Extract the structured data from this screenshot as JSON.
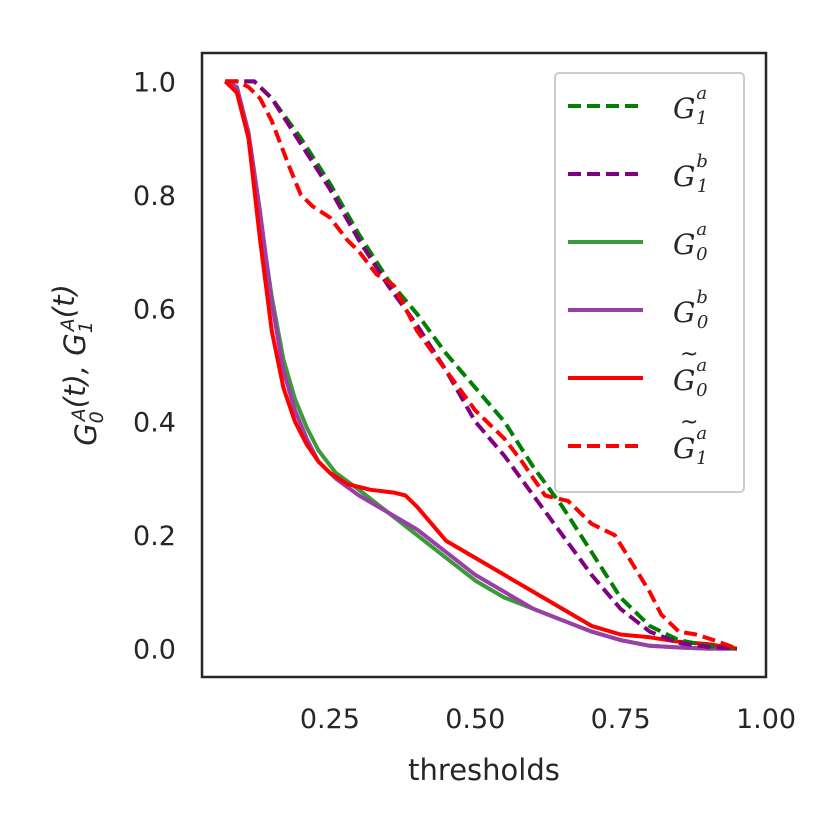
{
  "chart_data": {
    "type": "line",
    "title": "",
    "xlabel": "thresholds",
    "ylabel": "G_0^A(t), G_1^A(t)",
    "xlim": [
      0.03,
      1.0
    ],
    "ylim": [
      -0.05,
      1.05
    ],
    "xticks": [
      0.25,
      0.5,
      0.75,
      1.0
    ],
    "xtick_labels": [
      "0.25",
      "0.50",
      "0.75",
      "1.00"
    ],
    "yticks": [
      0.0,
      0.2,
      0.4,
      0.6,
      0.8,
      1.0
    ],
    "ytick_labels": [
      "0.0",
      "0.2",
      "0.4",
      "0.6",
      "0.8",
      "1.0"
    ],
    "legend_position": "top-right",
    "series": [
      {
        "name": "G_1^a",
        "legend": {
          "base": "G",
          "tilde": false,
          "sub": "1",
          "sup": "a"
        },
        "color": "#008000",
        "dash": "dashed",
        "x": [
          0.07,
          0.1,
          0.12,
          0.15,
          0.2,
          0.25,
          0.3,
          0.35,
          0.4,
          0.45,
          0.5,
          0.55,
          0.6,
          0.65,
          0.7,
          0.75,
          0.8,
          0.85,
          0.9,
          0.95
        ],
        "y": [
          1.0,
          1.0,
          1.0,
          0.97,
          0.9,
          0.82,
          0.73,
          0.65,
          0.59,
          0.52,
          0.46,
          0.4,
          0.32,
          0.25,
          0.17,
          0.09,
          0.04,
          0.015,
          0.005,
          0.0
        ]
      },
      {
        "name": "G_1^b",
        "legend": {
          "base": "G",
          "tilde": false,
          "sub": "1",
          "sup": "b"
        },
        "color": "#800080",
        "dash": "dashed",
        "x": [
          0.07,
          0.1,
          0.12,
          0.15,
          0.2,
          0.25,
          0.3,
          0.35,
          0.4,
          0.45,
          0.5,
          0.55,
          0.6,
          0.65,
          0.7,
          0.75,
          0.8,
          0.85,
          0.9,
          0.95
        ],
        "y": [
          1.0,
          1.0,
          1.0,
          0.97,
          0.89,
          0.81,
          0.72,
          0.64,
          0.57,
          0.49,
          0.4,
          0.34,
          0.27,
          0.2,
          0.13,
          0.07,
          0.03,
          0.01,
          0.003,
          0.0
        ]
      },
      {
        "name": "G_0^a",
        "legend": {
          "base": "G",
          "tilde": false,
          "sub": "0",
          "sup": "a"
        },
        "color": "#3c9a3c",
        "dash": "solid",
        "x": [
          0.07,
          0.09,
          0.11,
          0.13,
          0.15,
          0.17,
          0.19,
          0.21,
          0.23,
          0.26,
          0.3,
          0.35,
          0.4,
          0.45,
          0.5,
          0.55,
          0.6,
          0.65,
          0.7,
          0.75,
          0.8,
          0.85,
          0.9,
          0.95
        ],
        "y": [
          1.0,
          0.99,
          0.9,
          0.76,
          0.62,
          0.51,
          0.44,
          0.39,
          0.35,
          0.31,
          0.28,
          0.24,
          0.2,
          0.16,
          0.12,
          0.09,
          0.07,
          0.05,
          0.03,
          0.015,
          0.005,
          0.002,
          0.0,
          0.0
        ]
      },
      {
        "name": "G_0^b",
        "legend": {
          "base": "G",
          "tilde": false,
          "sub": "0",
          "sup": "b"
        },
        "color": "#9b3fa8",
        "dash": "solid",
        "x": [
          0.07,
          0.09,
          0.11,
          0.13,
          0.15,
          0.17,
          0.19,
          0.21,
          0.23,
          0.26,
          0.3,
          0.35,
          0.4,
          0.45,
          0.5,
          0.55,
          0.6,
          0.65,
          0.7,
          0.75,
          0.8,
          0.85,
          0.9,
          0.95
        ],
        "y": [
          1.0,
          0.99,
          0.91,
          0.77,
          0.61,
          0.49,
          0.42,
          0.37,
          0.33,
          0.3,
          0.27,
          0.24,
          0.21,
          0.17,
          0.13,
          0.1,
          0.07,
          0.05,
          0.03,
          0.015,
          0.005,
          0.002,
          0.0,
          0.0
        ]
      },
      {
        "name": "G~_0^a",
        "legend": {
          "base": "G",
          "tilde": true,
          "sub": "0",
          "sup": "a"
        },
        "color": "#ff0000",
        "dash": "solid",
        "x": [
          0.07,
          0.09,
          0.11,
          0.13,
          0.15,
          0.17,
          0.19,
          0.21,
          0.23,
          0.25,
          0.28,
          0.32,
          0.36,
          0.38,
          0.4,
          0.45,
          0.5,
          0.55,
          0.6,
          0.65,
          0.7,
          0.75,
          0.8,
          0.85,
          0.9,
          0.95
        ],
        "y": [
          1.0,
          0.98,
          0.9,
          0.72,
          0.56,
          0.46,
          0.4,
          0.36,
          0.33,
          0.31,
          0.29,
          0.28,
          0.275,
          0.27,
          0.25,
          0.19,
          0.16,
          0.13,
          0.1,
          0.07,
          0.04,
          0.025,
          0.02,
          0.012,
          0.008,
          0.0
        ]
      },
      {
        "name": "G~_1^a",
        "legend": {
          "base": "G",
          "tilde": true,
          "sub": "1",
          "sup": "a"
        },
        "color": "#ff0000",
        "dash": "dashed",
        "x": [
          0.07,
          0.09,
          0.11,
          0.13,
          0.15,
          0.18,
          0.2,
          0.22,
          0.25,
          0.28,
          0.3,
          0.33,
          0.36,
          0.4,
          0.45,
          0.5,
          0.55,
          0.58,
          0.62,
          0.66,
          0.7,
          0.74,
          0.77,
          0.8,
          0.82,
          0.85,
          0.88,
          0.91,
          0.95
        ],
        "y": [
          1.0,
          1.0,
          0.99,
          0.97,
          0.93,
          0.85,
          0.8,
          0.78,
          0.76,
          0.72,
          0.7,
          0.66,
          0.64,
          0.56,
          0.49,
          0.42,
          0.37,
          0.33,
          0.27,
          0.26,
          0.22,
          0.2,
          0.15,
          0.1,
          0.06,
          0.03,
          0.025,
          0.015,
          0.0
        ]
      }
    ]
  }
}
